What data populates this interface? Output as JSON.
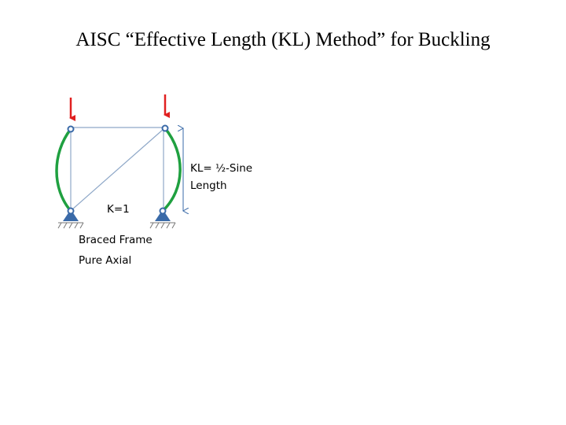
{
  "title": "AISC “Effective Length (KL) Method” for Buckling",
  "diagram": {
    "length_label": [
      "KL= ½-Sine",
      "Length"
    ],
    "k_label": "K=1",
    "caption": [
      "Braced Frame",
      "Pure Axial"
    ]
  }
}
